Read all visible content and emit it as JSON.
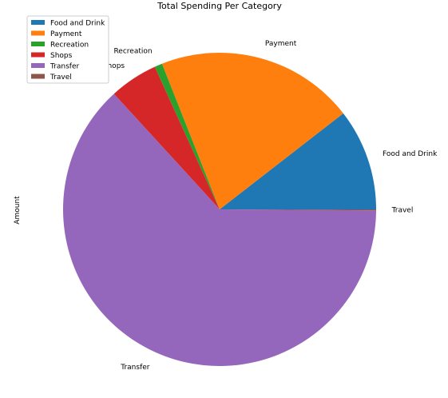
{
  "chart_data": {
    "type": "pie",
    "title": "Total Spending Per Category",
    "ylabel": "Amount",
    "legend_position": "top-left",
    "categories": [
      "Food and Drink",
      "Payment",
      "Recreation",
      "Shops",
      "Transfer",
      "Travel"
    ],
    "values": [
      10.5,
      20.5,
      0.8,
      5.0,
      63.1,
      0.1
    ],
    "colors": [
      "#1f77b4",
      "#ff7f0e",
      "#2ca02c",
      "#d62728",
      "#9467bd",
      "#8c564b"
    ],
    "start_angle_deg": 0,
    "direction": "counterclockwise"
  }
}
